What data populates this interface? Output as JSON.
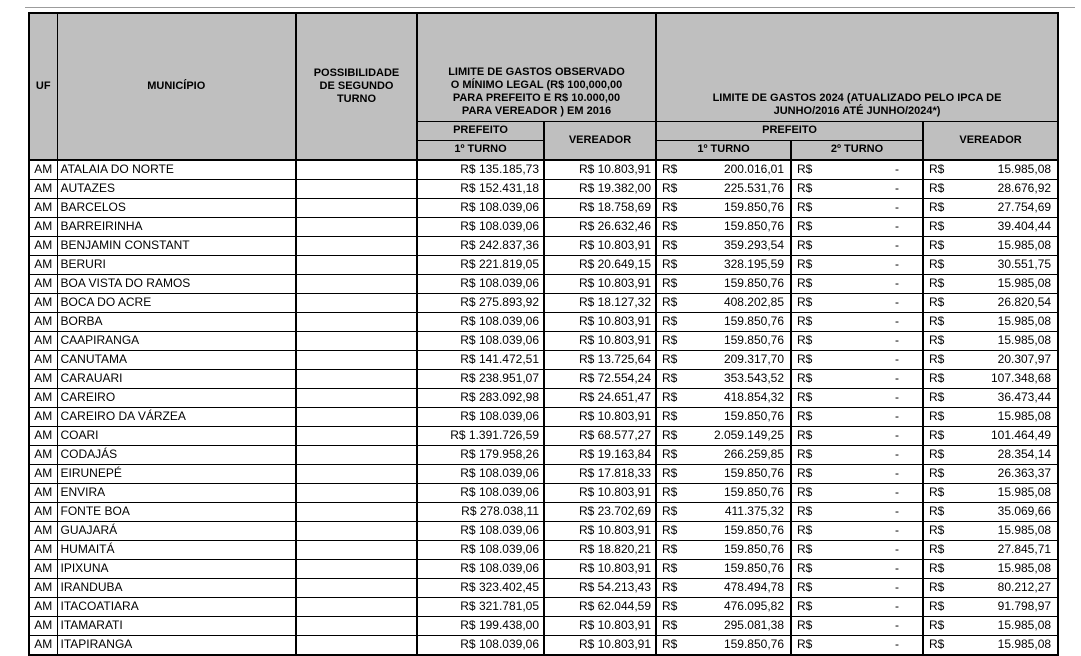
{
  "colors": {
    "header_bg": "#bfbfbf",
    "border": "#000000",
    "row_bg": "#ffffff"
  },
  "currency_symbol": "R$",
  "table": {
    "headers": {
      "uf": "UF",
      "municipio": "MUNICÍPIO",
      "possibilidade": "POSSIBILIDADE\nDE SEGUNDO\nTURNO",
      "limite_2016": "LIMITE DE GASTOS OBSERVADO\nO MÍNIMO LEGAL (R$ 100,000,00\nPARA PREFEITO E R$ 10.000,00\nPARA VEREADOR ) EM 2016",
      "limite_2024": "LIMITE DE GASTOS 2024 (ATUALIZADO PELO IPCA DE\nJUNHO/2016 ATÉ JUNHO/2024*)",
      "prefeito": "PREFEITO",
      "vereador": "VEREADOR",
      "turno1": "1º TURNO",
      "turno2": "2º TURNO"
    },
    "rows": [
      {
        "uf": "AM",
        "municipio": "ATALAIA DO NORTE",
        "possibilidade": "",
        "g2016_prefeito_t1": "R$ 135.185,73",
        "g2016_vereador": "R$ 10.803,91",
        "g2024_prefeito_t1": "200.016,01",
        "g2024_prefeito_t2": "-",
        "g2024_vereador": "15.985,08"
      },
      {
        "uf": "AM",
        "municipio": "AUTAZES",
        "possibilidade": "",
        "g2016_prefeito_t1": "R$ 152.431,18",
        "g2016_vereador": "R$ 19.382,00",
        "g2024_prefeito_t1": "225.531,76",
        "g2024_prefeito_t2": "-",
        "g2024_vereador": "28.676,92"
      },
      {
        "uf": "AM",
        "municipio": "BARCELOS",
        "possibilidade": "",
        "g2016_prefeito_t1": "R$ 108.039,06",
        "g2016_vereador": "R$ 18.758,69",
        "g2024_prefeito_t1": "159.850,76",
        "g2024_prefeito_t2": "-",
        "g2024_vereador": "27.754,69"
      },
      {
        "uf": "AM",
        "municipio": "BARREIRINHA",
        "possibilidade": "",
        "g2016_prefeito_t1": "R$ 108.039,06",
        "g2016_vereador": "R$ 26.632,46",
        "g2024_prefeito_t1": "159.850,76",
        "g2024_prefeito_t2": "-",
        "g2024_vereador": "39.404,44"
      },
      {
        "uf": "AM",
        "municipio": "BENJAMIN CONSTANT",
        "possibilidade": "",
        "g2016_prefeito_t1": "R$ 242.837,36",
        "g2016_vereador": "R$ 10.803,91",
        "g2024_prefeito_t1": "359.293,54",
        "g2024_prefeito_t2": "-",
        "g2024_vereador": "15.985,08"
      },
      {
        "uf": "AM",
        "municipio": "BERURI",
        "possibilidade": "",
        "g2016_prefeito_t1": "R$ 221.819,05",
        "g2016_vereador": "R$ 20.649,15",
        "g2024_prefeito_t1": "328.195,59",
        "g2024_prefeito_t2": "-",
        "g2024_vereador": "30.551,75"
      },
      {
        "uf": "AM",
        "municipio": "BOA VISTA DO RAMOS",
        "possibilidade": "",
        "g2016_prefeito_t1": "R$ 108.039,06",
        "g2016_vereador": "R$ 10.803,91",
        "g2024_prefeito_t1": "159.850,76",
        "g2024_prefeito_t2": "-",
        "g2024_vereador": "15.985,08"
      },
      {
        "uf": "AM",
        "municipio": "BOCA DO ACRE",
        "possibilidade": "",
        "g2016_prefeito_t1": "R$ 275.893,92",
        "g2016_vereador": "R$ 18.127,32",
        "g2024_prefeito_t1": "408.202,85",
        "g2024_prefeito_t2": "-",
        "g2024_vereador": "26.820,54"
      },
      {
        "uf": "AM",
        "municipio": "BORBA",
        "possibilidade": "",
        "g2016_prefeito_t1": "R$ 108.039,06",
        "g2016_vereador": "R$ 10.803,91",
        "g2024_prefeito_t1": "159.850,76",
        "g2024_prefeito_t2": "-",
        "g2024_vereador": "15.985,08"
      },
      {
        "uf": "AM",
        "municipio": "CAAPIRANGA",
        "possibilidade": "",
        "g2016_prefeito_t1": "R$ 108.039,06",
        "g2016_vereador": "R$ 10.803,91",
        "g2024_prefeito_t1": "159.850,76",
        "g2024_prefeito_t2": "-",
        "g2024_vereador": "15.985,08"
      },
      {
        "uf": "AM",
        "municipio": "CANUTAMA",
        "possibilidade": "",
        "g2016_prefeito_t1": "R$ 141.472,51",
        "g2016_vereador": "R$ 13.725,64",
        "g2024_prefeito_t1": "209.317,70",
        "g2024_prefeito_t2": "-",
        "g2024_vereador": "20.307,97"
      },
      {
        "uf": "AM",
        "municipio": "CARAUARI",
        "possibilidade": "",
        "g2016_prefeito_t1": "R$ 238.951,07",
        "g2016_vereador": "R$ 72.554,24",
        "g2024_prefeito_t1": "353.543,52",
        "g2024_prefeito_t2": "-",
        "g2024_vereador": "107.348,68"
      },
      {
        "uf": "AM",
        "municipio": "CAREIRO",
        "possibilidade": "",
        "g2016_prefeito_t1": "R$ 283.092,98",
        "g2016_vereador": "R$ 24.651,47",
        "g2024_prefeito_t1": "418.854,32",
        "g2024_prefeito_t2": "-",
        "g2024_vereador": "36.473,44"
      },
      {
        "uf": "AM",
        "municipio": "CAREIRO DA VÁRZEA",
        "possibilidade": "",
        "g2016_prefeito_t1": "R$ 108.039,06",
        "g2016_vereador": "R$ 10.803,91",
        "g2024_prefeito_t1": "159.850,76",
        "g2024_prefeito_t2": "-",
        "g2024_vereador": "15.985,08"
      },
      {
        "uf": "AM",
        "municipio": "COARI",
        "possibilidade": "",
        "g2016_prefeito_t1": "R$ 1.391.726,59",
        "g2016_vereador": "R$ 68.577,27",
        "g2024_prefeito_t1": "2.059.149,25",
        "g2024_prefeito_t2": "-",
        "g2024_vereador": "101.464,49"
      },
      {
        "uf": "AM",
        "municipio": "CODAJÁS",
        "possibilidade": "",
        "g2016_prefeito_t1": "R$ 179.958,26",
        "g2016_vereador": "R$ 19.163,84",
        "g2024_prefeito_t1": "266.259,85",
        "g2024_prefeito_t2": "-",
        "g2024_vereador": "28.354,14"
      },
      {
        "uf": "AM",
        "municipio": "EIRUNEPÉ",
        "possibilidade": "",
        "g2016_prefeito_t1": "R$ 108.039,06",
        "g2016_vereador": "R$ 17.818,33",
        "g2024_prefeito_t1": "159.850,76",
        "g2024_prefeito_t2": "-",
        "g2024_vereador": "26.363,37"
      },
      {
        "uf": "AM",
        "municipio": "ENVIRA",
        "possibilidade": "",
        "g2016_prefeito_t1": "R$ 108.039,06",
        "g2016_vereador": "R$ 10.803,91",
        "g2024_prefeito_t1": "159.850,76",
        "g2024_prefeito_t2": "-",
        "g2024_vereador": "15.985,08"
      },
      {
        "uf": "AM",
        "municipio": "FONTE BOA",
        "possibilidade": "",
        "g2016_prefeito_t1": "R$ 278.038,11",
        "g2016_vereador": "R$ 23.702,69",
        "g2024_prefeito_t1": "411.375,32",
        "g2024_prefeito_t2": "-",
        "g2024_vereador": "35.069,66"
      },
      {
        "uf": "AM",
        "municipio": "GUAJARÁ",
        "possibilidade": "",
        "g2016_prefeito_t1": "R$ 108.039,06",
        "g2016_vereador": "R$ 10.803,91",
        "g2024_prefeito_t1": "159.850,76",
        "g2024_prefeito_t2": "-",
        "g2024_vereador": "15.985,08"
      },
      {
        "uf": "AM",
        "municipio": "HUMAITÁ",
        "possibilidade": "",
        "g2016_prefeito_t1": "R$ 108.039,06",
        "g2016_vereador": "R$ 18.820,21",
        "g2024_prefeito_t1": "159.850,76",
        "g2024_prefeito_t2": "-",
        "g2024_vereador": "27.845,71"
      },
      {
        "uf": "AM",
        "municipio": "IPIXUNA",
        "possibilidade": "",
        "g2016_prefeito_t1": "R$ 108.039,06",
        "g2016_vereador": "R$ 10.803,91",
        "g2024_prefeito_t1": "159.850,76",
        "g2024_prefeito_t2": "-",
        "g2024_vereador": "15.985,08"
      },
      {
        "uf": "AM",
        "municipio": "IRANDUBA",
        "possibilidade": "",
        "g2016_prefeito_t1": "R$ 323.402,45",
        "g2016_vereador": "R$ 54.213,43",
        "g2024_prefeito_t1": "478.494,78",
        "g2024_prefeito_t2": "-",
        "g2024_vereador": "80.212,27"
      },
      {
        "uf": "AM",
        "municipio": "ITACOATIARA",
        "possibilidade": "",
        "g2016_prefeito_t1": "R$ 321.781,05",
        "g2016_vereador": "R$ 62.044,59",
        "g2024_prefeito_t1": "476.095,82",
        "g2024_prefeito_t2": "-",
        "g2024_vereador": "91.798,97"
      },
      {
        "uf": "AM",
        "municipio": "ITAMARATI",
        "possibilidade": "",
        "g2016_prefeito_t1": "R$ 199.438,00",
        "g2016_vereador": "R$ 10.803,91",
        "g2024_prefeito_t1": "295.081,38",
        "g2024_prefeito_t2": "-",
        "g2024_vereador": "15.985,08"
      },
      {
        "uf": "AM",
        "municipio": "ITAPIRANGA",
        "possibilidade": "",
        "g2016_prefeito_t1": "R$ 108.039,06",
        "g2016_vereador": "R$ 10.803,91",
        "g2024_prefeito_t1": "159.850,76",
        "g2024_prefeito_t2": "-",
        "g2024_vereador": "15.985,08"
      }
    ]
  }
}
